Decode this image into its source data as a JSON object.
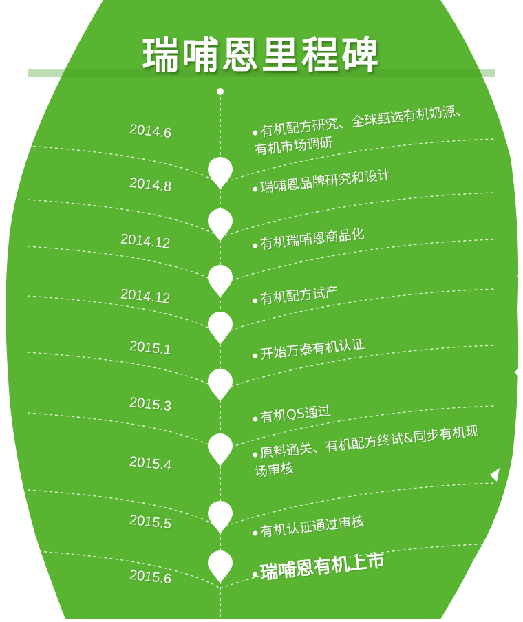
{
  "title": "瑞哺恩里程碑",
  "colors": {
    "leaf": "#58B431",
    "leaf_dark": "#4a9c27",
    "text": "#ffffff"
  },
  "milestones": [
    {
      "date": "2014.6",
      "text": "有机配方研究、全球甄选有机奶源、有机市场调研"
    },
    {
      "date": "2014.8",
      "text": "瑞哺恩品牌研究和设计"
    },
    {
      "date": "2014.12",
      "text": "有机瑞哺恩商品化"
    },
    {
      "date": "2014.12",
      "text": "有机配方试产"
    },
    {
      "date": "2015.1",
      "text": "开始万泰有机认证"
    },
    {
      "date": "2015.3",
      "text": "有机QS通过"
    },
    {
      "date": "2015.4",
      "text": "原料通关、有机配方终试&同步有机现场审核"
    },
    {
      "date": "2015.5",
      "text": "有机认证通过审核"
    },
    {
      "date": "2015.6",
      "text": "瑞哺恩有机上市"
    }
  ]
}
